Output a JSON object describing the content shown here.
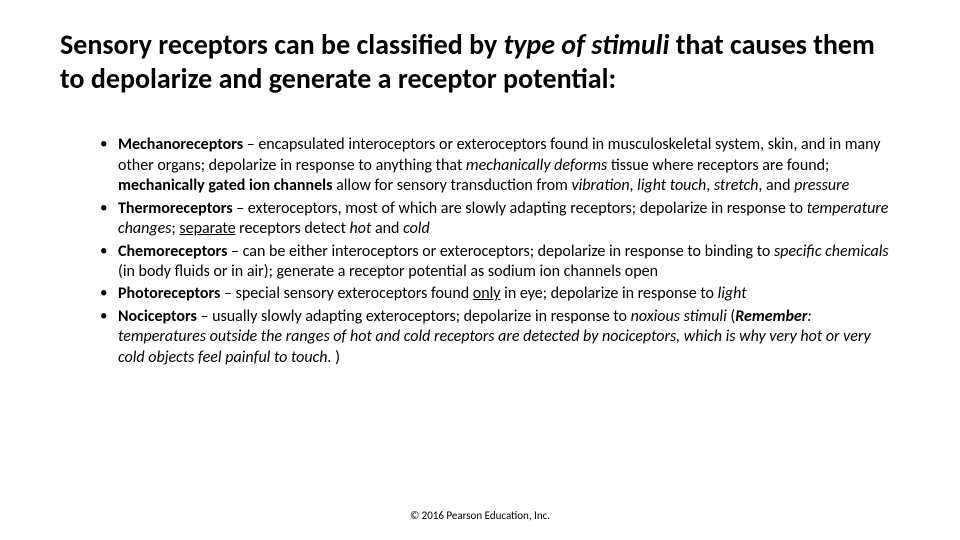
{
  "title": {
    "part1": "Sensory receptors can be classified by ",
    "italic_phrase": "type of stimuli ",
    "part2": "that causes them to depolarize and generate a receptor potential:"
  },
  "bullets": [
    {
      "term": "Mechanoreceptors",
      "dash": " – ",
      "seg1": "encapsulated interoceptors or exteroceptors found in musculoskeletal system, skin, and in many other organs; depolarize in response to anything that ",
      "seg2_i": "mechanically deforms",
      "seg3": " tissue where receptors are found; ",
      "seg4_b": "mechanically gated ion channels",
      "seg5": " allow for sensory transduction from ",
      "seg6_i": "vibration",
      "seg7": ", ",
      "seg8_i": "light touch",
      "seg9": ", ",
      "seg10_i": "stretch",
      "seg11": ", and ",
      "seg12_i": "pressure"
    },
    {
      "term": "Thermoreceptors",
      "dash": " – ",
      "seg1": "exteroceptors, most of which are slowly adapting receptors; depolarize in response to ",
      "seg2_i": "temperature changes",
      "seg3": "; ",
      "seg4_u": "separate",
      "seg5": " receptors detect ",
      "seg6_i": "hot",
      "seg7": " and ",
      "seg8_i": "cold"
    },
    {
      "term": "Chemoreceptors",
      "dash": " – ",
      "seg1": "can be either interoceptors or exteroceptors; depolarize in response to binding to ",
      "seg2_i": "specific chemicals",
      "seg3": " (in body fluids or in air); generate a receptor potential as sodium ion channels open"
    },
    {
      "term": "Photoreceptors",
      "dash": " – ",
      "seg1": "special sensory exteroceptors found ",
      "seg2_u": "only",
      "seg3": " in eye; depolarize in response to ",
      "seg4_i": "light"
    },
    {
      "term": "Nociceptors",
      "dash": " – ",
      "seg1": "usually slowly adapting exteroceptors; depolarize in response to ",
      "seg2_i": "noxious stimuli ",
      "seg3": "(",
      "seg4_bi": "Remember",
      "seg5_i": ": temperatures outside the ranges of hot and cold receptors are detected by nociceptors, which is why very hot or very cold objects feel painful to touch. ",
      "seg6": ")"
    }
  ],
  "copyright": "© 2016 Pearson Education, Inc."
}
